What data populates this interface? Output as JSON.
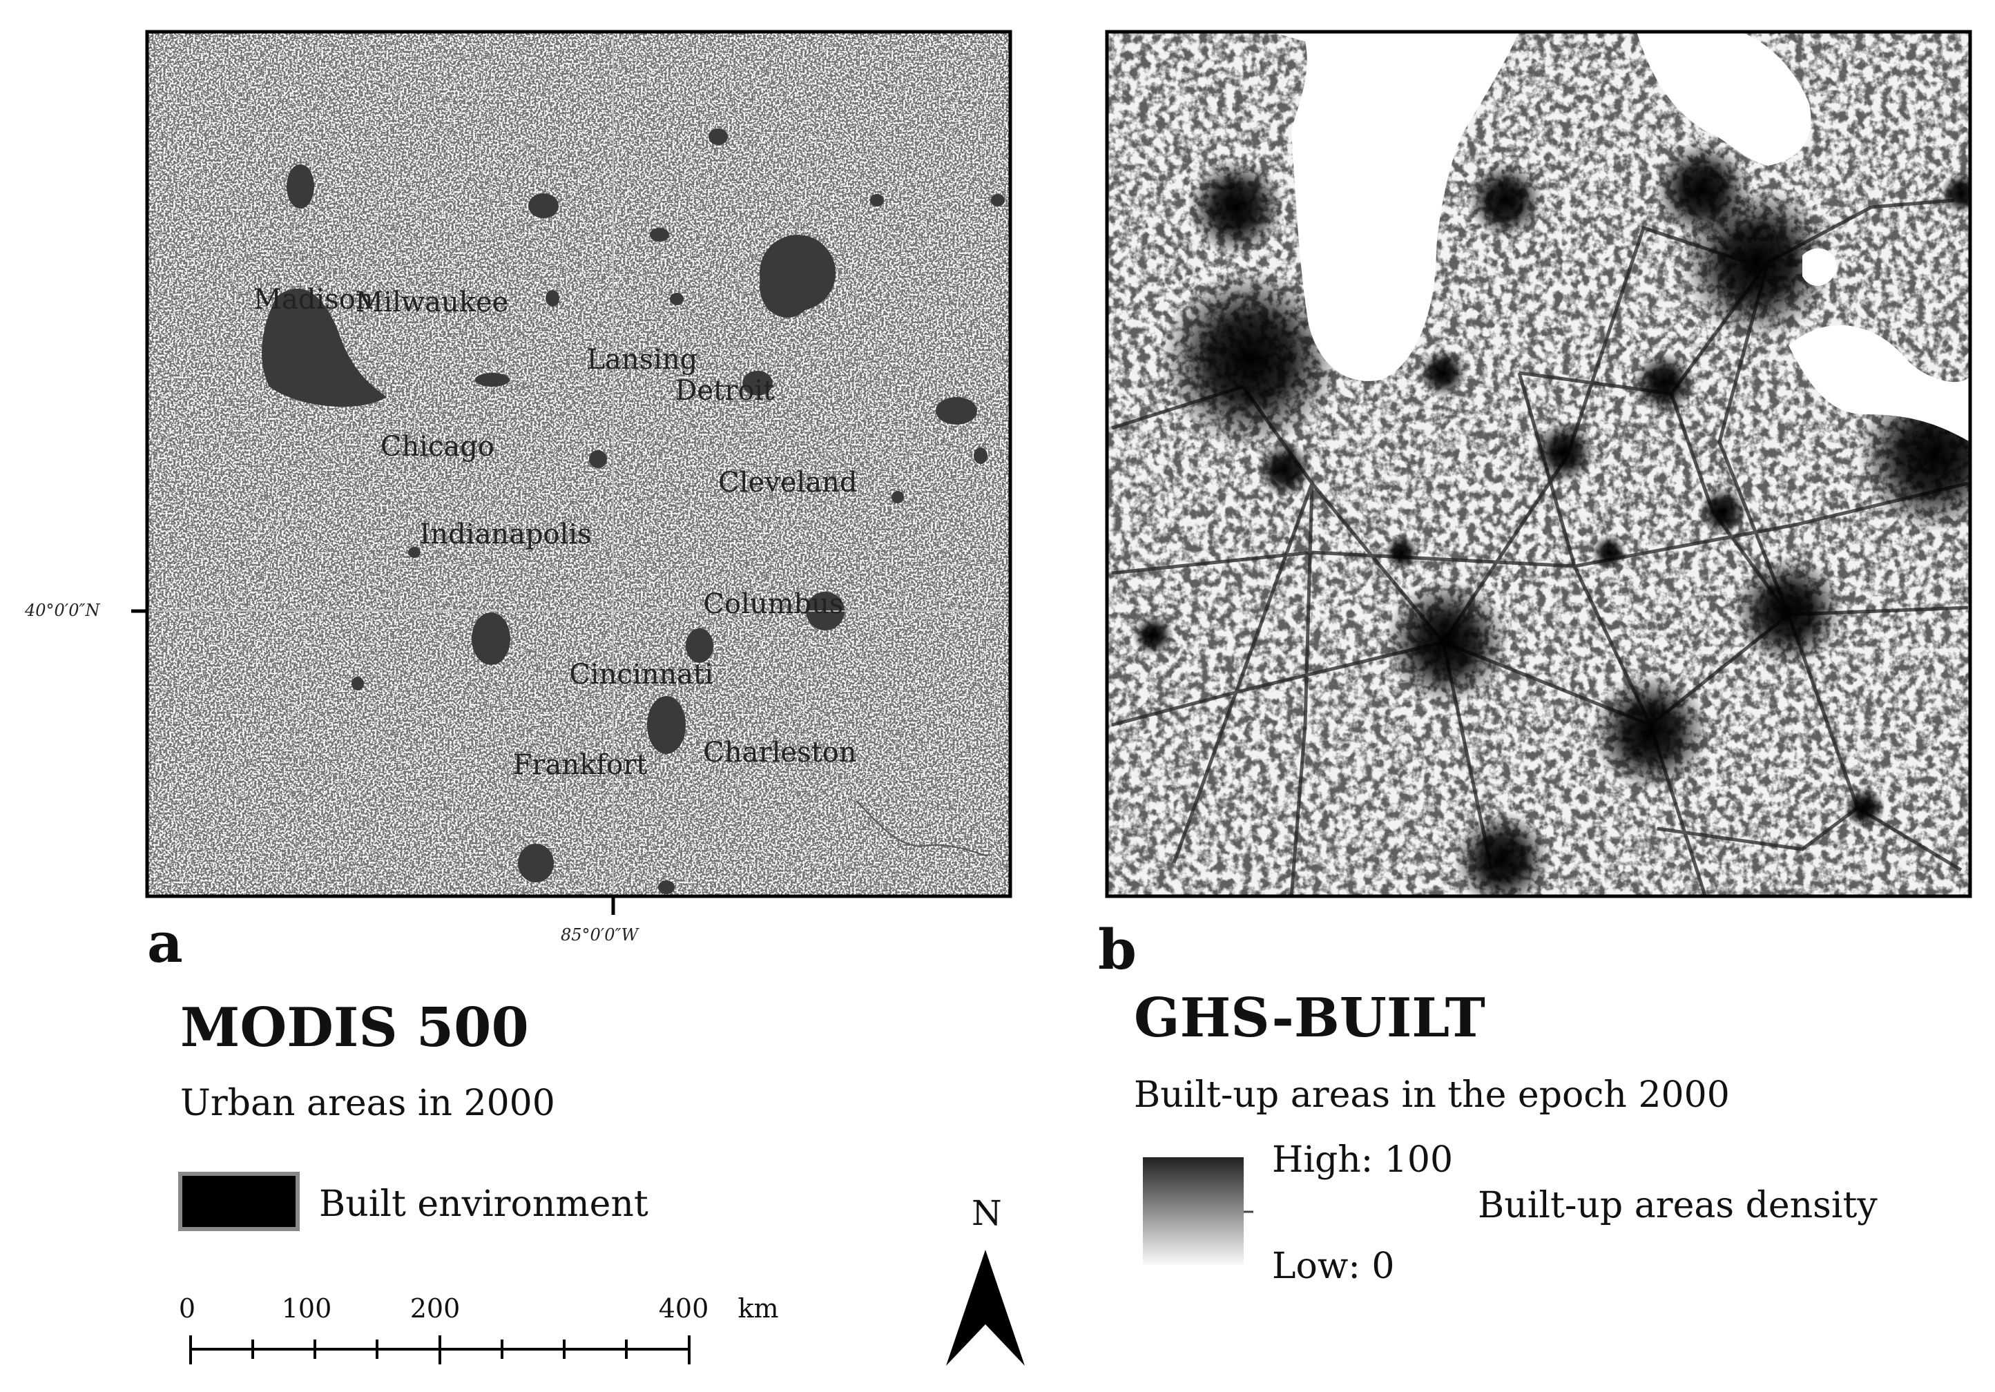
{
  "panel_a": {
    "letter": "a",
    "cities": [
      {
        "name": "Madison",
        "lon": -89.4,
        "lat": 43.07
      },
      {
        "name": "Milwaukee",
        "lon": -87.91,
        "lat": 43.04
      },
      {
        "name": "Lansing",
        "lon": -84.55,
        "lat": 42.73
      },
      {
        "name": "Detroit",
        "lon": -83.05,
        "lat": 42.33
      },
      {
        "name": "Chicago",
        "lon": -87.63,
        "lat": 41.88
      },
      {
        "name": "Cleveland",
        "lon": -81.69,
        "lat": 41.5
      },
      {
        "name": "Columbus",
        "lon": -82.99,
        "lat": 39.96
      },
      {
        "name": "Indianapolis",
        "lon": -86.16,
        "lat": 39.77
      },
      {
        "name": "Cincinnati",
        "lon": -84.51,
        "lat": 39.1
      },
      {
        "name": "Charleston",
        "lon": -81.63,
        "lat": 38.35
      },
      {
        "name": "Frankfort",
        "lon": -84.87,
        "lat": 38.2
      }
    ],
    "graticule": {
      "lat_label": "40°0′0″N",
      "lon_label": "85°0′0″W"
    }
  },
  "panel_b": {
    "letter": "b"
  },
  "legend_a": {
    "title": "MODIS 500",
    "subtitle": "Urban areas in 2000",
    "item_label": "Built environment",
    "item_color": "#000000"
  },
  "legend_b": {
    "title": "GHS-BUILT",
    "subtitle": "Built-up areas in the epoch 2000",
    "high_label": "High: 100",
    "low_label": "Low: 0",
    "ramp_label": "Built-up areas density"
  },
  "scale_bar": {
    "ticks": [
      "0",
      "100",
      "200",
      "400"
    ],
    "unit": "km"
  },
  "north_arrow": {
    "label": "N"
  }
}
